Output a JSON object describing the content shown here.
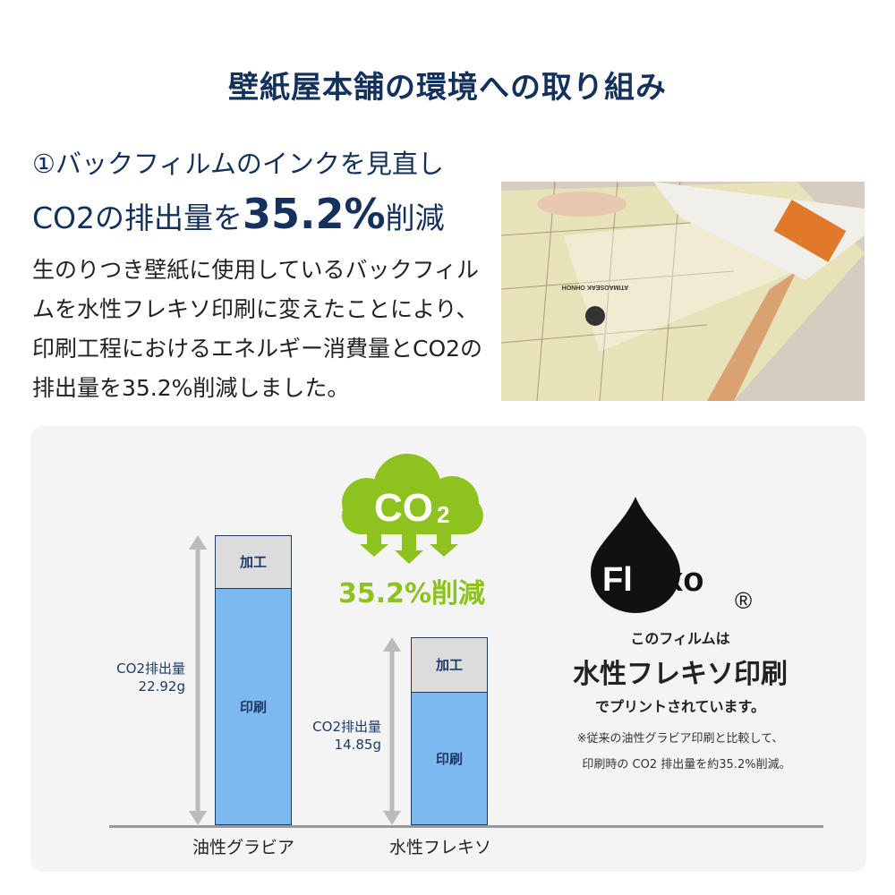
{
  "title": "壁紙屋本舗の環境への取り組み",
  "heading": {
    "line1": "①バックフィルムのインクを見直し",
    "line2_prefix": "CO2の排出量を",
    "line2_value": "35.2%",
    "line2_suffix": "削減"
  },
  "body_text": "生のりつき壁紙に使用しているバックフィルムを水性フレキソ印刷に変えたことにより、印刷工程におけるエネルギー消費量とCO2の排出量を35.2%削減しました。",
  "photo": {
    "film_label": "ATIMAOSEAK OHNOH"
  },
  "cloud": {
    "label": "CO",
    "sub": "2",
    "reduction": "35.2%削減",
    "color": "#8dc21f"
  },
  "flexo": {
    "logo": "Flexo",
    "registered": "®",
    "line1": "このフィルムは",
    "line2": "水性フレキソ印刷",
    "line3": "でプリントされています。",
    "note1": "※従来の油性グラビア印刷と比較して、",
    "note2": "印刷時の CO2 排出量を約35.2%削減。"
  },
  "chart_data": {
    "type": "bar",
    "stacked": true,
    "categories": [
      "油性グラビア",
      "水性フレキソ"
    ],
    "series": [
      {
        "name": "印刷",
        "values": [
          18.7,
          10.5
        ],
        "color": "#7db9f1"
      },
      {
        "name": "加工",
        "values": [
          4.2,
          4.3
        ],
        "color": "#dcdcdc"
      }
    ],
    "totals": [
      22.92,
      14.85
    ],
    "total_labels": [
      {
        "label": "CO2排出量",
        "value": "22.92g"
      },
      {
        "label": "CO2排出量",
        "value": "14.85g"
      }
    ],
    "unit": "g",
    "ylim": [
      0,
      23
    ],
    "grid": false
  }
}
